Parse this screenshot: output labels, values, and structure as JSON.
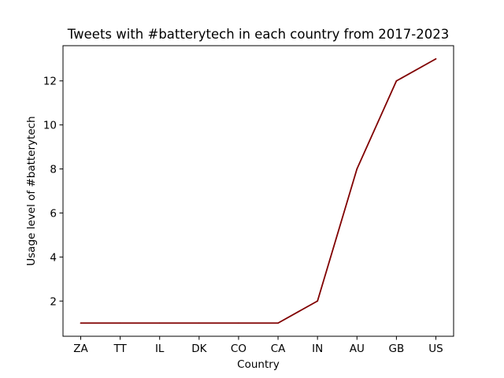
{
  "chart_data": {
    "type": "line",
    "title": "Tweets with #batterytech in each country from 2017-2023",
    "xlabel": "Country",
    "ylabel": "Usage level of #batterytech",
    "categories": [
      "ZA",
      "TT",
      "IL",
      "DK",
      "CO",
      "CA",
      "IN",
      "AU",
      "GB",
      "US"
    ],
    "values": [
      1,
      1,
      1,
      1,
      1,
      1,
      2,
      8,
      12,
      13
    ],
    "yticks": [
      2,
      4,
      6,
      8,
      10,
      12
    ],
    "ylim": [
      0.4,
      13.6
    ],
    "grid": false,
    "legend": "none",
    "line_color": "#800000"
  }
}
